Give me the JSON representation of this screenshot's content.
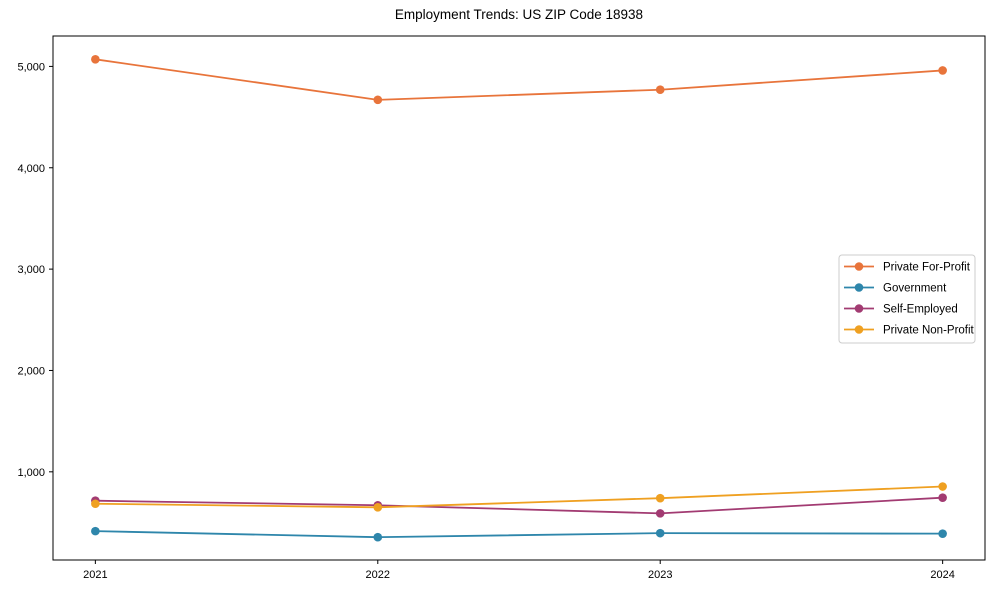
{
  "chart_data": {
    "type": "line",
    "title": "Employment Trends: US ZIP Code 18938",
    "xlabel": "",
    "ylabel": "",
    "x_values": [
      2021,
      2022,
      2023,
      2024
    ],
    "x_tick_labels": [
      "2021",
      "2022",
      "2023",
      "2024"
    ],
    "y_tick_values": [
      1000,
      2000,
      3000,
      4000,
      5000
    ],
    "y_tick_labels": [
      "1,000",
      "2,000",
      "3,000",
      "4,000",
      "5,000"
    ],
    "xlim": [
      2020.85,
      2024.15
    ],
    "ylim": [
      130,
      5300
    ],
    "grid": false,
    "legend_position": "center-right",
    "marker": "circle",
    "axis_color": "#000000",
    "text_color": "#000000",
    "legend_border_color": "#cccccc",
    "series": [
      {
        "name": "Private For-Profit",
        "color": "#E8743B",
        "values": [
          5070,
          4670,
          4770,
          4960
        ]
      },
      {
        "name": "Government",
        "color": "#2E86AB",
        "values": [
          415,
          355,
          395,
          390
        ]
      },
      {
        "name": "Self-Employed",
        "color": "#A23B72",
        "values": [
          715,
          670,
          590,
          745
        ]
      },
      {
        "name": "Private Non-Profit",
        "color": "#EFA021",
        "values": [
          685,
          650,
          740,
          855
        ]
      }
    ]
  }
}
